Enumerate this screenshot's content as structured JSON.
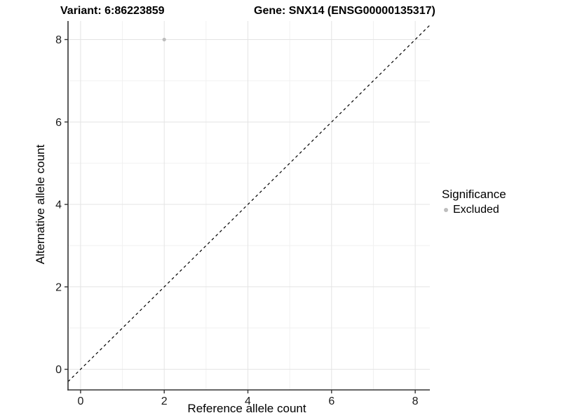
{
  "header": {
    "variant_title": "Variant: 6:86223859",
    "gene_title": "Gene: SNX14 (ENSG00000135317)"
  },
  "axes": {
    "x_label": "Reference allele count",
    "y_label": "Alternative allele count"
  },
  "legend": {
    "title": "Significance",
    "items": [
      {
        "label": "Excluded",
        "color": "#bdbdbd"
      }
    ]
  },
  "colors": {
    "background": "#ffffff",
    "axis_line": "#333333",
    "tick_label": "#1a1a1a",
    "grid_major": "#e4e4e4",
    "grid_minor": "#f1f1f1",
    "point": "#bdbdbd",
    "reference_line": "#000000"
  },
  "chart_data": {
    "type": "scatter",
    "title": "Variant: 6:86223859   Gene: SNX14 (ENSG00000135317)",
    "xlabel": "Reference allele count",
    "ylabel": "Alternative allele count",
    "xlim": [
      -0.3,
      8.35
    ],
    "ylim": [
      -0.5,
      8.45
    ],
    "xticks": [
      0,
      2,
      4,
      6,
      8
    ],
    "yticks": [
      0,
      2,
      4,
      6,
      8
    ],
    "xminor": [
      1,
      3,
      5,
      7
    ],
    "yminor": [
      1,
      3,
      5,
      7
    ],
    "grid": "major+minor",
    "legend_position": "right",
    "reference_line": {
      "kind": "identity-y-equals-x",
      "dash": "dashed",
      "color": "#000000"
    },
    "series": [
      {
        "name": "Excluded",
        "color": "#bdbdbd",
        "points": [
          {
            "x": 2,
            "y": 8
          }
        ]
      }
    ]
  }
}
